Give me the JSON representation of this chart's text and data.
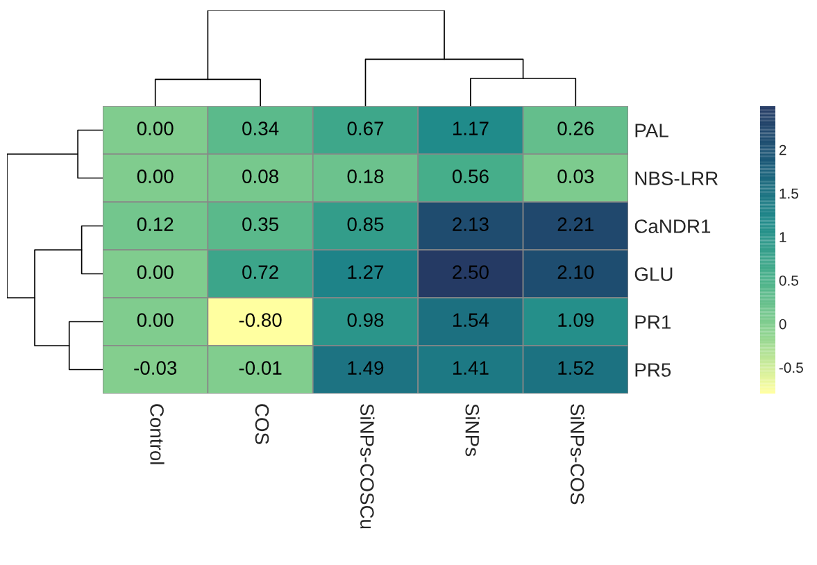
{
  "chart_data": {
    "type": "heatmap",
    "categories": [
      "Control",
      "COS",
      "SiNPs-COSCu",
      "SiNPs",
      "SiNPs-COS"
    ],
    "y_categories": [
      "PAL",
      "NBS-LRR",
      "CaNDR1",
      "GLU",
      "PR1",
      "PR5"
    ],
    "cells": [
      [
        0.0,
        0.34,
        0.67,
        1.17,
        0.26
      ],
      [
        0.0,
        0.08,
        0.18,
        0.56,
        0.03
      ],
      [
        0.12,
        0.35,
        0.85,
        2.13,
        2.21
      ],
      [
        0.0,
        0.72,
        1.27,
        2.5,
        2.1
      ],
      [
        0.0,
        -0.8,
        0.98,
        1.54,
        1.09
      ],
      [
        -0.03,
        -0.01,
        1.49,
        1.41,
        1.52
      ]
    ],
    "cell_labels": [
      [
        "0.00",
        "0.34",
        "0.67",
        "1.17",
        "0.26"
      ],
      [
        "0.00",
        "0.08",
        "0.18",
        "0.56",
        "0.03"
      ],
      [
        "0.12",
        "0.35",
        "0.85",
        "2.13",
        "2.21"
      ],
      [
        "0.00",
        "0.72",
        "1.27",
        "2.50",
        "2.10"
      ],
      [
        "0.00",
        "-0.80",
        "0.98",
        "1.54",
        "1.09"
      ],
      [
        "-0.03",
        "-0.01",
        "1.49",
        "1.41",
        "1.52"
      ]
    ],
    "clim": [
      -0.8,
      2.5
    ],
    "cticks": [
      -0.5,
      0,
      0.5,
      1,
      1.5,
      2
    ]
  }
}
